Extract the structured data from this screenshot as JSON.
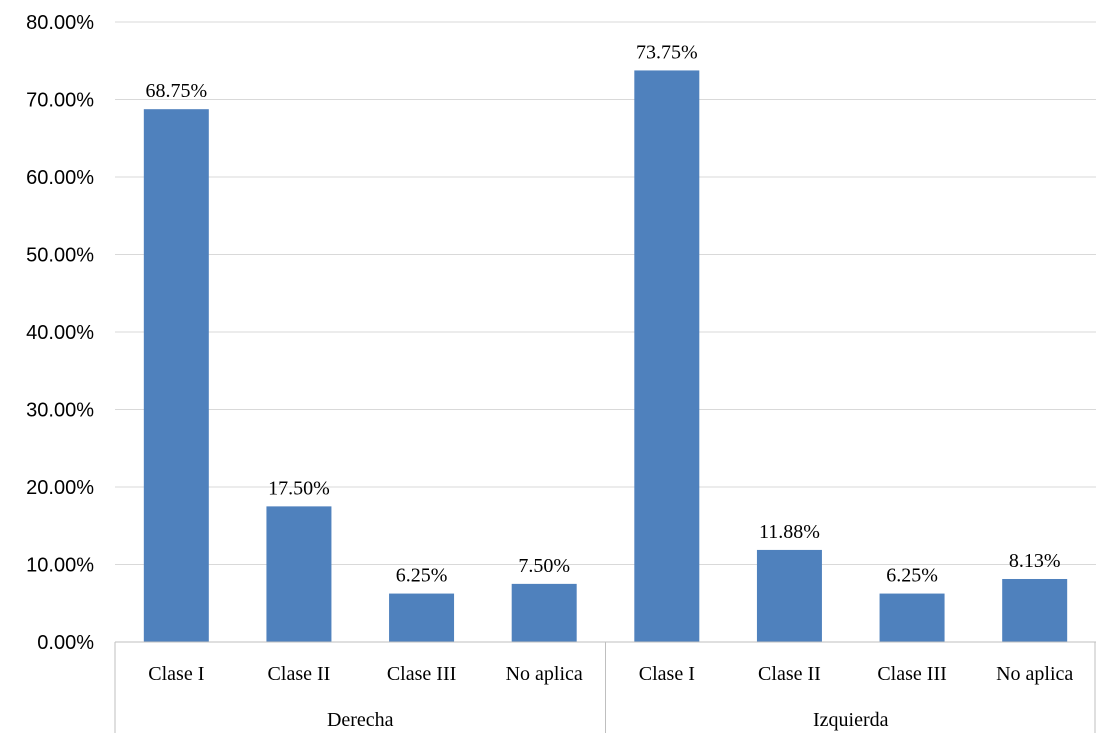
{
  "chart_data": {
    "type": "bar",
    "groups": [
      {
        "label": "Derecha",
        "categories": [
          "Clase I",
          "Clase II",
          "Clase III",
          "No aplica"
        ],
        "values": [
          68.75,
          17.5,
          6.25,
          7.5
        ],
        "value_labels": [
          "68.75%",
          "17.50%",
          "6.25%",
          "7.50%"
        ]
      },
      {
        "label": "Izquierda",
        "categories": [
          "Clase I",
          "Clase II",
          "Clase III",
          "No aplica"
        ],
        "values": [
          73.75,
          11.88,
          6.25,
          8.13
        ],
        "value_labels": [
          "73.75%",
          "11.88%",
          "6.25%",
          "8.13%"
        ]
      }
    ],
    "y_ticks": [
      "0.00%",
      "10.00%",
      "20.00%",
      "30.00%",
      "40.00%",
      "50.00%",
      "60.00%",
      "70.00%",
      "80.00%"
    ],
    "ylim": [
      0,
      80
    ],
    "grid": true,
    "legend": "none",
    "bar_color": "#4f81bd",
    "title": "",
    "xlabel": "",
    "ylabel": ""
  }
}
